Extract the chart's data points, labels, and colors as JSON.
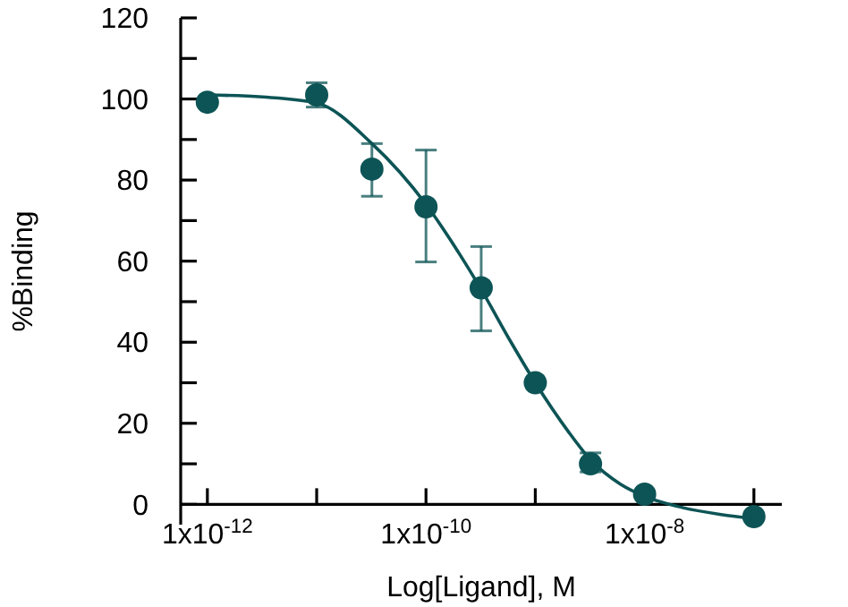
{
  "chart_data": {
    "type": "scatter",
    "xlabel": "Log[Ligand],  M",
    "ylabel": "%Binding",
    "log": "x",
    "xlim": [
      5.7e-13,
      1.8e-07
    ],
    "ylim": [
      -5,
      120
    ],
    "xticks": [
      {
        "value": 1e-12,
        "label": "1x10$^{-12}$"
      },
      {
        "value": 1e-11,
        "label": null
      },
      {
        "value": 1e-10,
        "label": "1x10$^{-10}$"
      },
      {
        "value": 1e-09,
        "label": null
      },
      {
        "value": 1e-08,
        "label": "1x10$^{-8}$"
      },
      {
        "value": 1e-07,
        "label": null
      }
    ],
    "yticks": [
      0,
      {
        "value": 10,
        "label": null
      },
      20,
      {
        "value": 30,
        "label": null
      },
      40,
      {
        "value": 50,
        "label": null
      },
      60,
      {
        "value": 70,
        "label": null
      },
      80,
      {
        "value": 90,
        "label": null
      },
      100,
      {
        "value": 110,
        "label": null
      },
      120
    ],
    "grid": false,
    "series": [
      {
        "color": "#0d5456",
        "marker": "circle",
        "x": [
          1e-12,
          1e-11,
          3.2e-11,
          1e-10,
          3.2e-10,
          1e-09,
          3.2e-09,
          1e-08,
          1e-07
        ],
        "values": [
          99.2,
          101,
          82.7,
          73.4,
          53.4,
          30,
          10,
          2.5,
          -3
        ],
        "errors": [
          null,
          [
            98,
            104
          ],
          [
            76,
            89
          ],
          [
            59.8,
            87.4
          ],
          [
            42.8,
            63.6
          ],
          null,
          [
            8,
            12.7
          ],
          null,
          null
        ]
      },
      {
        "type": "line",
        "color": "#0d5456",
        "line_style": "solid",
        "x": [
          1e-12,
          3.2e-12,
          1e-11,
          3.2e-11,
          1e-10,
          2e-10,
          3.2e-10,
          6e-10,
          1e-09,
          2e-09,
          3.2e-09,
          6e-09,
          1e-08,
          2e-08,
          5e-08,
          1e-07
        ],
        "values": [
          101,
          100.5,
          99,
          89,
          74,
          62,
          53,
          40,
          30,
          18,
          11,
          5,
          2,
          -0.5,
          -2.5,
          -3.5
        ]
      }
    ]
  }
}
